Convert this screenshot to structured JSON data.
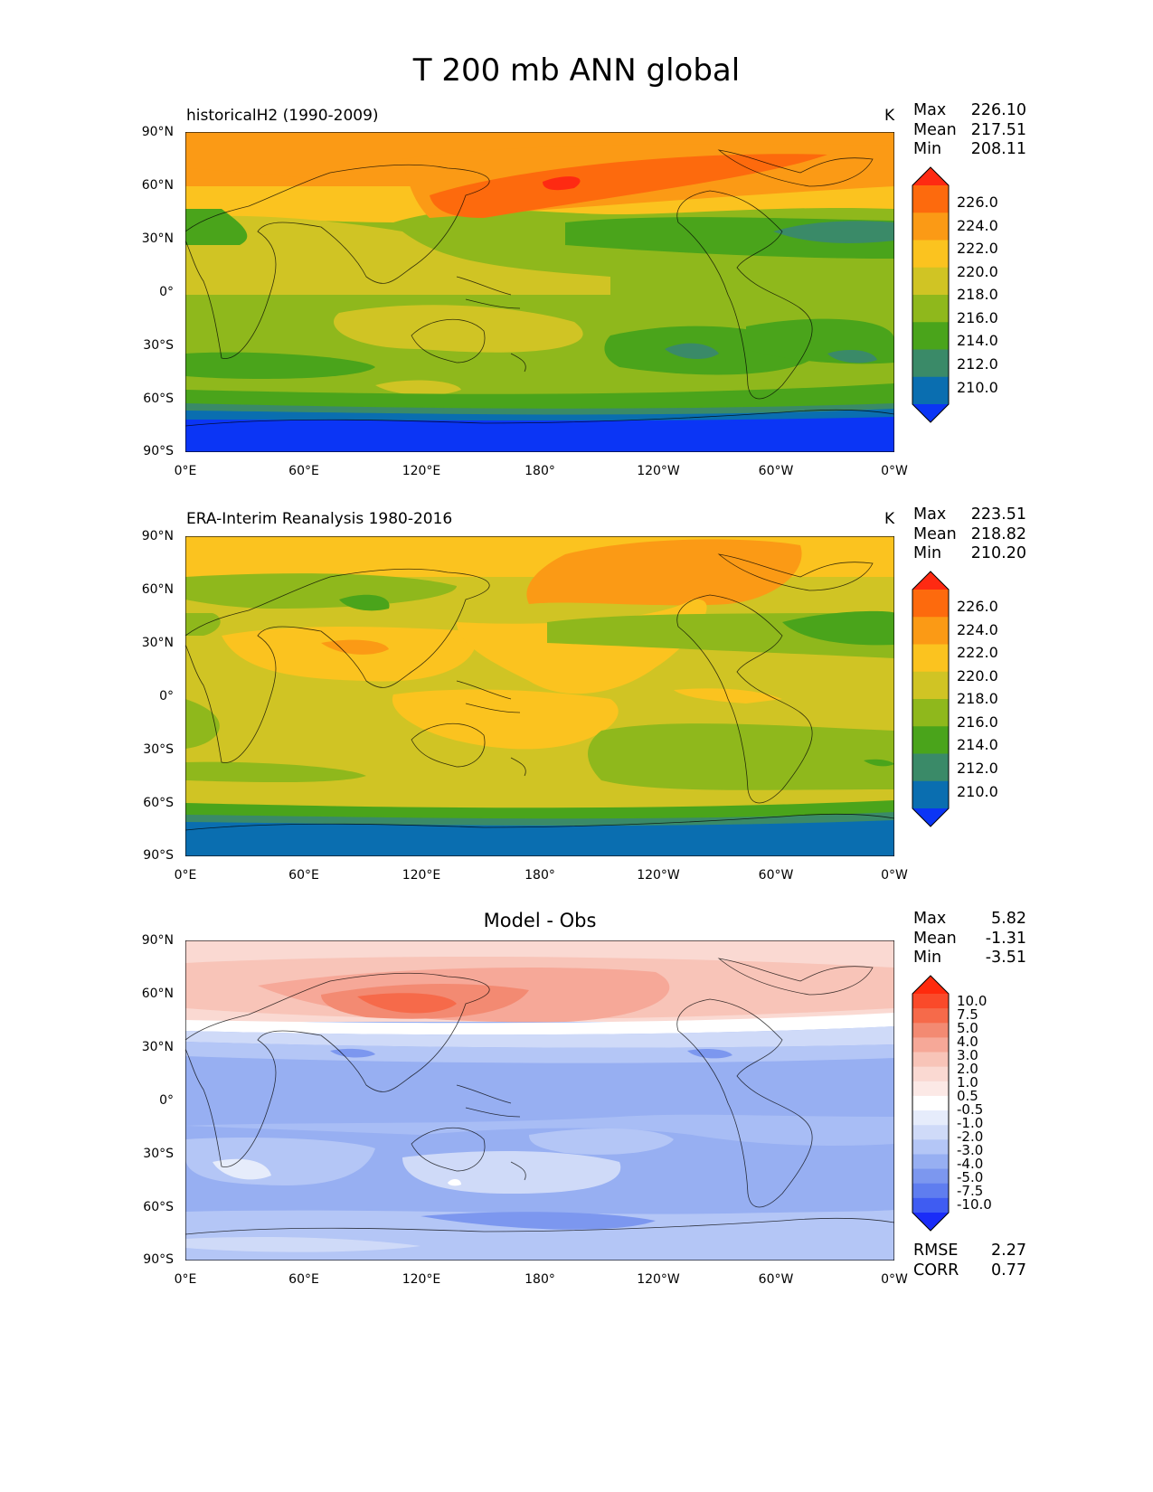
{
  "figure": {
    "title": "T 200 mb ANN global"
  },
  "axes": {
    "lat_ticks": [
      "90°N",
      "60°N",
      "30°N",
      "0°",
      "30°S",
      "60°S",
      "90°S"
    ],
    "lon_ticks": [
      "0°E",
      "60°E",
      "120°E",
      "180°",
      "120°W",
      "60°W",
      "0°W"
    ]
  },
  "panels": [
    {
      "title": "historicalH2 (1990-2009)",
      "units": "K",
      "stats": {
        "max_label": "Max",
        "max": "226.10",
        "mean_label": "Mean",
        "mean": "217.51",
        "min_label": "Min",
        "min": "208.11"
      },
      "colorbar": {
        "ticks": [
          "226.0",
          "224.0",
          "222.0",
          "220.0",
          "218.0",
          "216.0",
          "214.0",
          "212.0",
          "210.0"
        ],
        "colors": [
          "#fe2a12",
          "#fd6a0d",
          "#fb9a15",
          "#fbc31f",
          "#d0c424",
          "#8fb81c",
          "#4aa41b",
          "#3a8a68",
          "#0a6eb0",
          "#0b35f5"
        ]
      }
    },
    {
      "title": "ERA-Interim Reanalysis 1980-2016",
      "units": "K",
      "stats": {
        "max_label": "Max",
        "max": "223.51",
        "mean_label": "Mean",
        "mean": "218.82",
        "min_label": "Min",
        "min": "210.20"
      },
      "colorbar": {
        "ticks": [
          "226.0",
          "224.0",
          "222.0",
          "220.0",
          "218.0",
          "216.0",
          "214.0",
          "212.0",
          "210.0"
        ],
        "colors": [
          "#fe2a12",
          "#fd6a0d",
          "#fb9a15",
          "#fbc31f",
          "#d0c424",
          "#8fb81c",
          "#4aa41b",
          "#3a8a68",
          "#0a6eb0",
          "#0b35f5"
        ]
      }
    },
    {
      "title": "Model - Obs",
      "units": "",
      "stats": {
        "max_label": "Max",
        "max": "5.82",
        "mean_label": "Mean",
        "mean": "-1.31",
        "min_label": "Min",
        "min": "-3.51"
      },
      "colorbar": {
        "ticks": [
          "10.0",
          "7.5",
          "5.0",
          "4.0",
          "3.0",
          "2.0",
          "1.0",
          "0.5",
          "-0.5",
          "-1.0",
          "-2.0",
          "-3.0",
          "-4.0",
          "-5.0",
          "-7.5",
          "-10.0"
        ],
        "colors": [
          "#ff2a0d",
          "#fa4a2a",
          "#f66a4a",
          "#f38a72",
          "#f6a898",
          "#f8c4b8",
          "#fad9d2",
          "#fce9e6",
          "#ffffff",
          "#e6ecfb",
          "#cfdaf8",
          "#b4c6f6",
          "#97aff2",
          "#7c97ef",
          "#5f7def",
          "#3f5cf2",
          "#1a2cf8"
        ]
      },
      "metrics": {
        "rmse_label": "RMSE",
        "rmse": "2.27",
        "corr_label": "CORR",
        "corr": "0.77"
      }
    }
  ]
}
